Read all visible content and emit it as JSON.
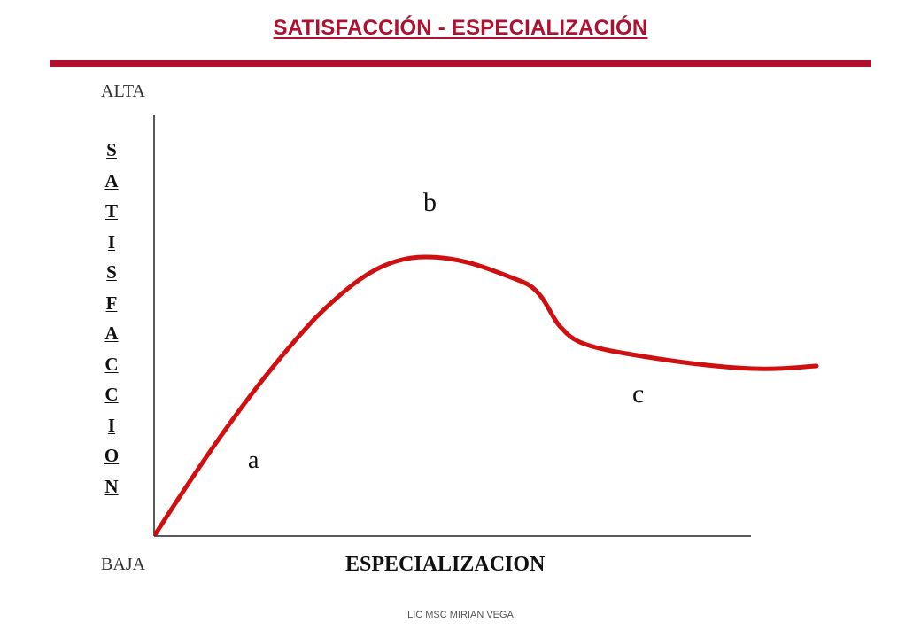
{
  "title": "SATISFACCIÓN - ESPECIALIZACIÓN",
  "accent_color": "#b0102e",
  "curve_color": "#d01010",
  "y_high_label": "ALTA",
  "y_low_label": "BAJA",
  "y_axis_letters": [
    "S",
    "A",
    "T",
    "I",
    "S",
    "F",
    "A",
    "C",
    "C",
    "I",
    "O",
    "N"
  ],
  "x_axis_label": "ESPECIALIZACION",
  "point_labels": {
    "a": "a",
    "b": "b",
    "c": "c"
  },
  "footer": "LIC MSC MIRIAN VEGA"
}
